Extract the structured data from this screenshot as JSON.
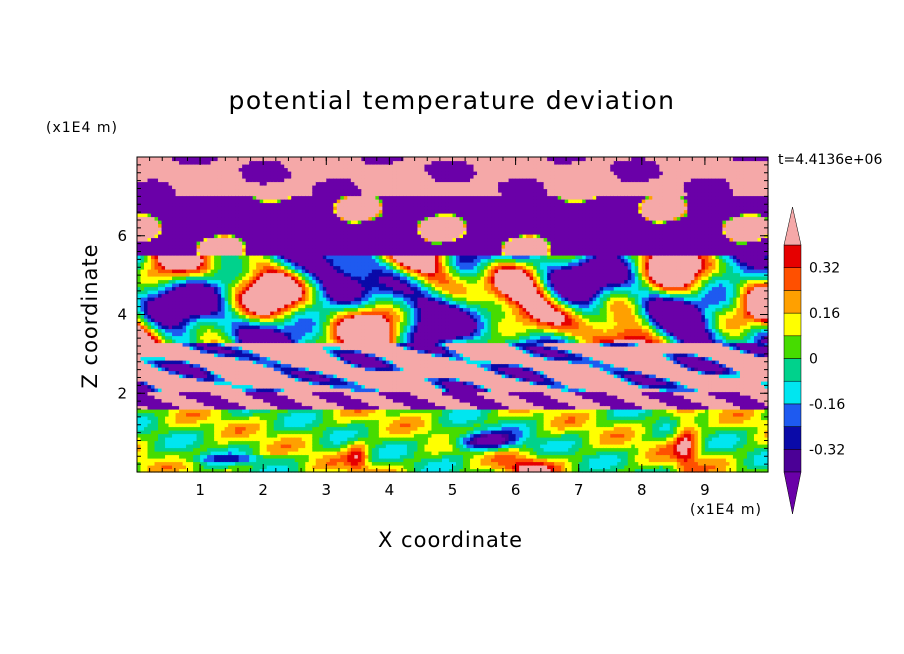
{
  "chart_data": {
    "type": "heatmap",
    "title": "potential temperature deviation",
    "xlabel": "X coordinate",
    "ylabel": "Z coordinate",
    "x_unit": "(x1E4 m)",
    "z_unit": "(x1E4 m)",
    "time_label": "t=4.4136e+06",
    "xlim": [
      0,
      10
    ],
    "ylim": [
      0,
      8
    ],
    "x_ticks": [
      1,
      2,
      3,
      4,
      5,
      6,
      7,
      8,
      9
    ],
    "y_ticks": [
      2,
      4,
      6
    ],
    "colorbar": {
      "levels": [
        -0.4,
        -0.32,
        -0.24,
        -0.16,
        -0.08,
        0,
        0.08,
        0.16,
        0.24,
        0.32,
        0.4
      ],
      "labels": [
        "0.32",
        "0.16",
        "0",
        "-0.16",
        "-0.32"
      ],
      "colors_low_to_high": [
        "#4B0096",
        "#0A0AA8",
        "#1E5AF0",
        "#00E6F0",
        "#00D28C",
        "#46DC00",
        "#FFFF00",
        "#FFA000",
        "#FF5000",
        "#E60000"
      ],
      "under_color": "#6A00A8",
      "over_color": "#F5A8A8",
      "extend": "both"
    },
    "field": {
      "bands": [
        {
          "z_range": [
            7.0,
            8.0
          ],
          "dominant": "over",
          "secondary": "under"
        },
        {
          "z_range": [
            5.5,
            7.0
          ],
          "dominant": "under",
          "secondary": "over"
        },
        {
          "z_range": [
            3.3,
            5.5
          ],
          "dominant": "mixed",
          "secondary": "mid-levels"
        },
        {
          "z_range": [
            2.0,
            3.3
          ],
          "dominant": "over",
          "secondary": "under"
        },
        {
          "z_range": [
            0.0,
            1.6
          ],
          "dominant": "mid-levels",
          "secondary": "low-levels"
        }
      ]
    }
  }
}
